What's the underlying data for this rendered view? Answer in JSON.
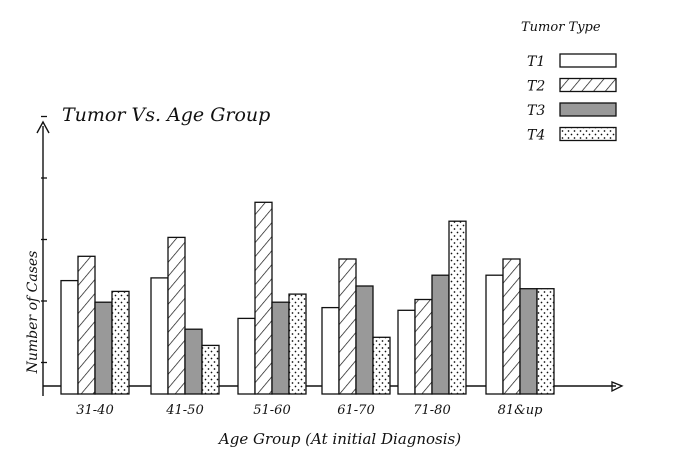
{
  "chart_data": {
    "type": "bar",
    "title": "Tumor Vs. Age Group",
    "xlabel": "Age Group (At initial Diagnosis)",
    "ylabel": "Number of Cases",
    "categories": [
      "31-40",
      "41-50",
      "51-60",
      "61-70",
      "71-80",
      "81&up"
    ],
    "legend_title": "Tumor Type",
    "legend_position": "top-right",
    "y_tick_count": 5,
    "ylim": [
      0,
      1
    ],
    "y_tick_labels_shown": false,
    "grid": false,
    "series": [
      {
        "name": "T1",
        "pattern": "solid-white",
        "values": [
          0.42,
          0.43,
          0.28,
          0.32,
          0.31,
          0.44
        ]
      },
      {
        "name": "T2",
        "pattern": "diagonal-hatch",
        "values": [
          0.51,
          0.58,
          0.71,
          0.5,
          0.35,
          0.5
        ]
      },
      {
        "name": "T3",
        "pattern": "solid-gray",
        "values": [
          0.34,
          0.24,
          0.34,
          0.4,
          0.44,
          0.39
        ]
      },
      {
        "name": "T4",
        "pattern": "dotted",
        "values": [
          0.38,
          0.18,
          0.37,
          0.21,
          0.64,
          0.39
        ]
      }
    ],
    "colors": {
      "ink": "#111111",
      "gray_fill": "#999999",
      "white_fill": "#ffffff"
    }
  }
}
